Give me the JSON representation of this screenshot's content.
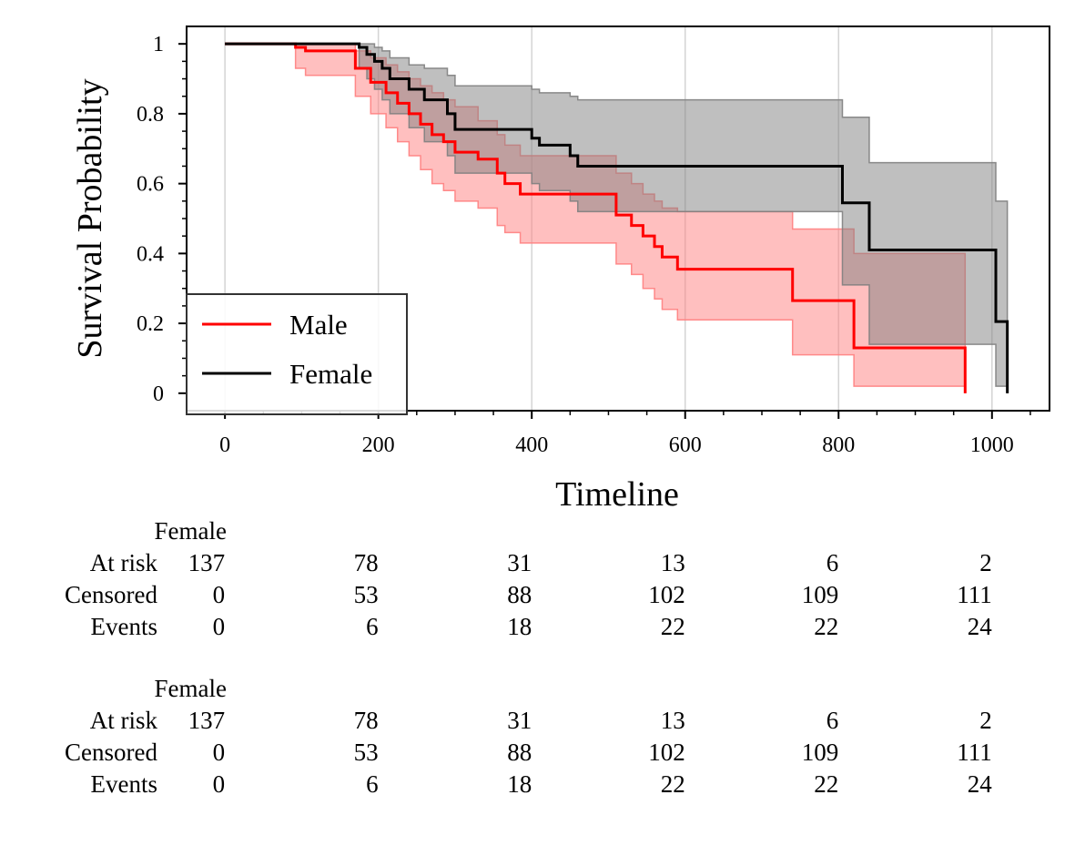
{
  "chart_data": {
    "type": "line",
    "subtype": "kaplan-meier step curves with confidence bands",
    "xlabel": "Timeline",
    "ylabel": "Survival Probability",
    "xlim": [
      -50,
      1075
    ],
    "ylim": [
      -0.05,
      1.05
    ],
    "x_ticks": [
      0,
      200,
      400,
      600,
      800,
      1000
    ],
    "x_tick_labels": [
      "0",
      "200",
      "400",
      "600",
      "800",
      "1000"
    ],
    "y_ticks": [
      0,
      0.2,
      0.4,
      0.6,
      0.8,
      1
    ],
    "y_tick_labels": [
      "0",
      "0.2",
      "0.4",
      "0.6",
      "0.8",
      "1"
    ],
    "grid": "vertical lines at x ticks",
    "legend_position": "bottom-left",
    "series": [
      {
        "name": "Male",
        "color": "#ff0000",
        "band_color": "#ff8080",
        "x": [
          0,
          92,
          105,
          170,
          190,
          210,
          225,
          240,
          255,
          270,
          285,
          300,
          330,
          355,
          365,
          385,
          510,
          530,
          545,
          560,
          570,
          590,
          740,
          820,
          965
        ],
        "y": [
          1.0,
          0.99,
          0.98,
          0.93,
          0.89,
          0.86,
          0.83,
          0.8,
          0.77,
          0.74,
          0.72,
          0.69,
          0.67,
          0.63,
          0.6,
          0.57,
          0.51,
          0.48,
          0.45,
          0.42,
          0.39,
          0.355,
          0.265,
          0.13,
          0.0
        ],
        "ci_upper": [
          1.0,
          1.0,
          1.0,
          0.98,
          0.96,
          0.94,
          0.92,
          0.9,
          0.88,
          0.86,
          0.84,
          0.82,
          0.78,
          0.74,
          0.71,
          0.68,
          0.63,
          0.6,
          0.57,
          0.55,
          0.53,
          0.52,
          0.47,
          0.4,
          0.4
        ],
        "ci_lower": [
          1.0,
          0.93,
          0.91,
          0.85,
          0.8,
          0.76,
          0.72,
          0.68,
          0.64,
          0.6,
          0.58,
          0.55,
          0.53,
          0.48,
          0.46,
          0.43,
          0.37,
          0.34,
          0.3,
          0.27,
          0.24,
          0.21,
          0.11,
          0.02,
          0.0
        ]
      },
      {
        "name": "Female",
        "color": "#000000",
        "band_color": "#7f7f7f",
        "x": [
          0,
          175,
          185,
          195,
          205,
          215,
          240,
          260,
          290,
          300,
          400,
          410,
          450,
          460,
          805,
          840,
          1005,
          1020
        ],
        "y": [
          1.0,
          0.99,
          0.97,
          0.95,
          0.93,
          0.9,
          0.87,
          0.84,
          0.8,
          0.755,
          0.73,
          0.71,
          0.68,
          0.65,
          0.545,
          0.41,
          0.205,
          0.0
        ],
        "ci_upper": [
          1.0,
          1.0,
          1.0,
          0.99,
          0.98,
          0.96,
          0.94,
          0.93,
          0.91,
          0.88,
          0.87,
          0.86,
          0.85,
          0.84,
          0.79,
          0.66,
          0.55,
          0.55
        ],
        "ci_lower": [
          1.0,
          0.93,
          0.9,
          0.87,
          0.84,
          0.8,
          0.76,
          0.72,
          0.68,
          0.63,
          0.6,
          0.58,
          0.55,
          0.52,
          0.31,
          0.14,
          0.02,
          0.0
        ]
      }
    ],
    "risk_tables": [
      {
        "title": "Female",
        "rows": [
          {
            "label": "At risk",
            "values": [
              "137",
              "78",
              "31",
              "13",
              "6",
              "2"
            ]
          },
          {
            "label": "Censored",
            "values": [
              "0",
              "53",
              "88",
              "102",
              "109",
              "111"
            ]
          },
          {
            "label": "Events",
            "values": [
              "0",
              "6",
              "18",
              "22",
              "22",
              "24"
            ]
          }
        ]
      },
      {
        "title": "Female",
        "rows": [
          {
            "label": "At risk",
            "values": [
              "137",
              "78",
              "31",
              "13",
              "6",
              "2"
            ]
          },
          {
            "label": "Censored",
            "values": [
              "0",
              "53",
              "88",
              "102",
              "109",
              "111"
            ]
          },
          {
            "label": "Events",
            "values": [
              "0",
              "6",
              "18",
              "22",
              "22",
              "24"
            ]
          }
        ]
      }
    ]
  }
}
